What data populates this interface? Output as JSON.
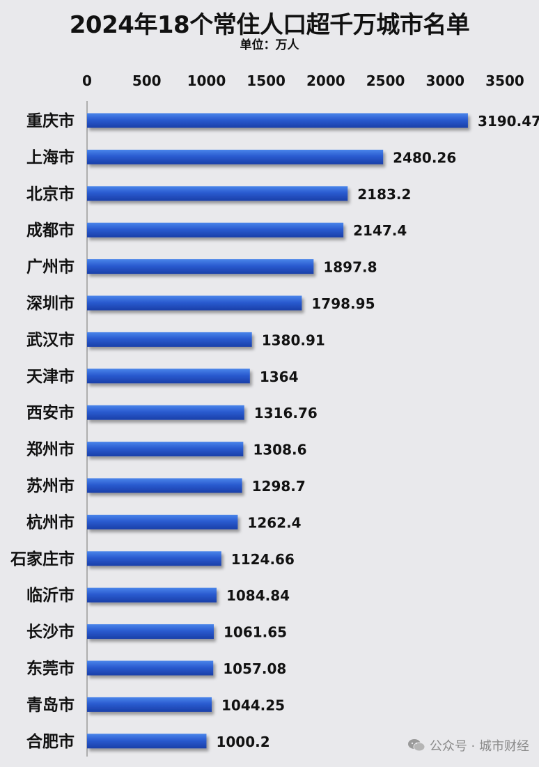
{
  "chart_data": {
    "type": "bar",
    "orientation": "horizontal",
    "title": "2024年18个常住人口超千万城市名单",
    "subtitle": "单位：万人",
    "categories": [
      "重庆市",
      "上海市",
      "北京市",
      "成都市",
      "广州市",
      "深圳市",
      "武汉市",
      "天津市",
      "西安市",
      "郑州市",
      "苏州市",
      "杭州市",
      "石家庄市",
      "临沂市",
      "长沙市",
      "东莞市",
      "青岛市",
      "合肥市"
    ],
    "values": [
      3190.47,
      2480.26,
      2183.2,
      2147.4,
      1897.8,
      1798.95,
      1380.91,
      1364,
      1316.76,
      1308.6,
      1298.7,
      1262.4,
      1124.66,
      1084.84,
      1061.65,
      1057.08,
      1044.25,
      1000.2
    ],
    "value_labels": [
      "3190.47",
      "2480.26",
      "2183.2",
      "2147.4",
      "1897.8",
      "1798.95",
      "1380.91",
      "1364",
      "1316.76",
      "1308.6",
      "1298.7",
      "1262.4",
      "1124.66",
      "1084.84",
      "1061.65",
      "1057.08",
      "1044.25",
      "1000.2"
    ],
    "x_ticks": [
      0,
      500,
      1000,
      1500,
      2000,
      2500,
      3000,
      3500
    ],
    "xlim": [
      0,
      3500
    ],
    "axis_position": "top",
    "grid": false,
    "bar_color": "#2a5bd0"
  },
  "watermark": "公众号 · 城市财经",
  "watermark_icon": "wechat-icon"
}
